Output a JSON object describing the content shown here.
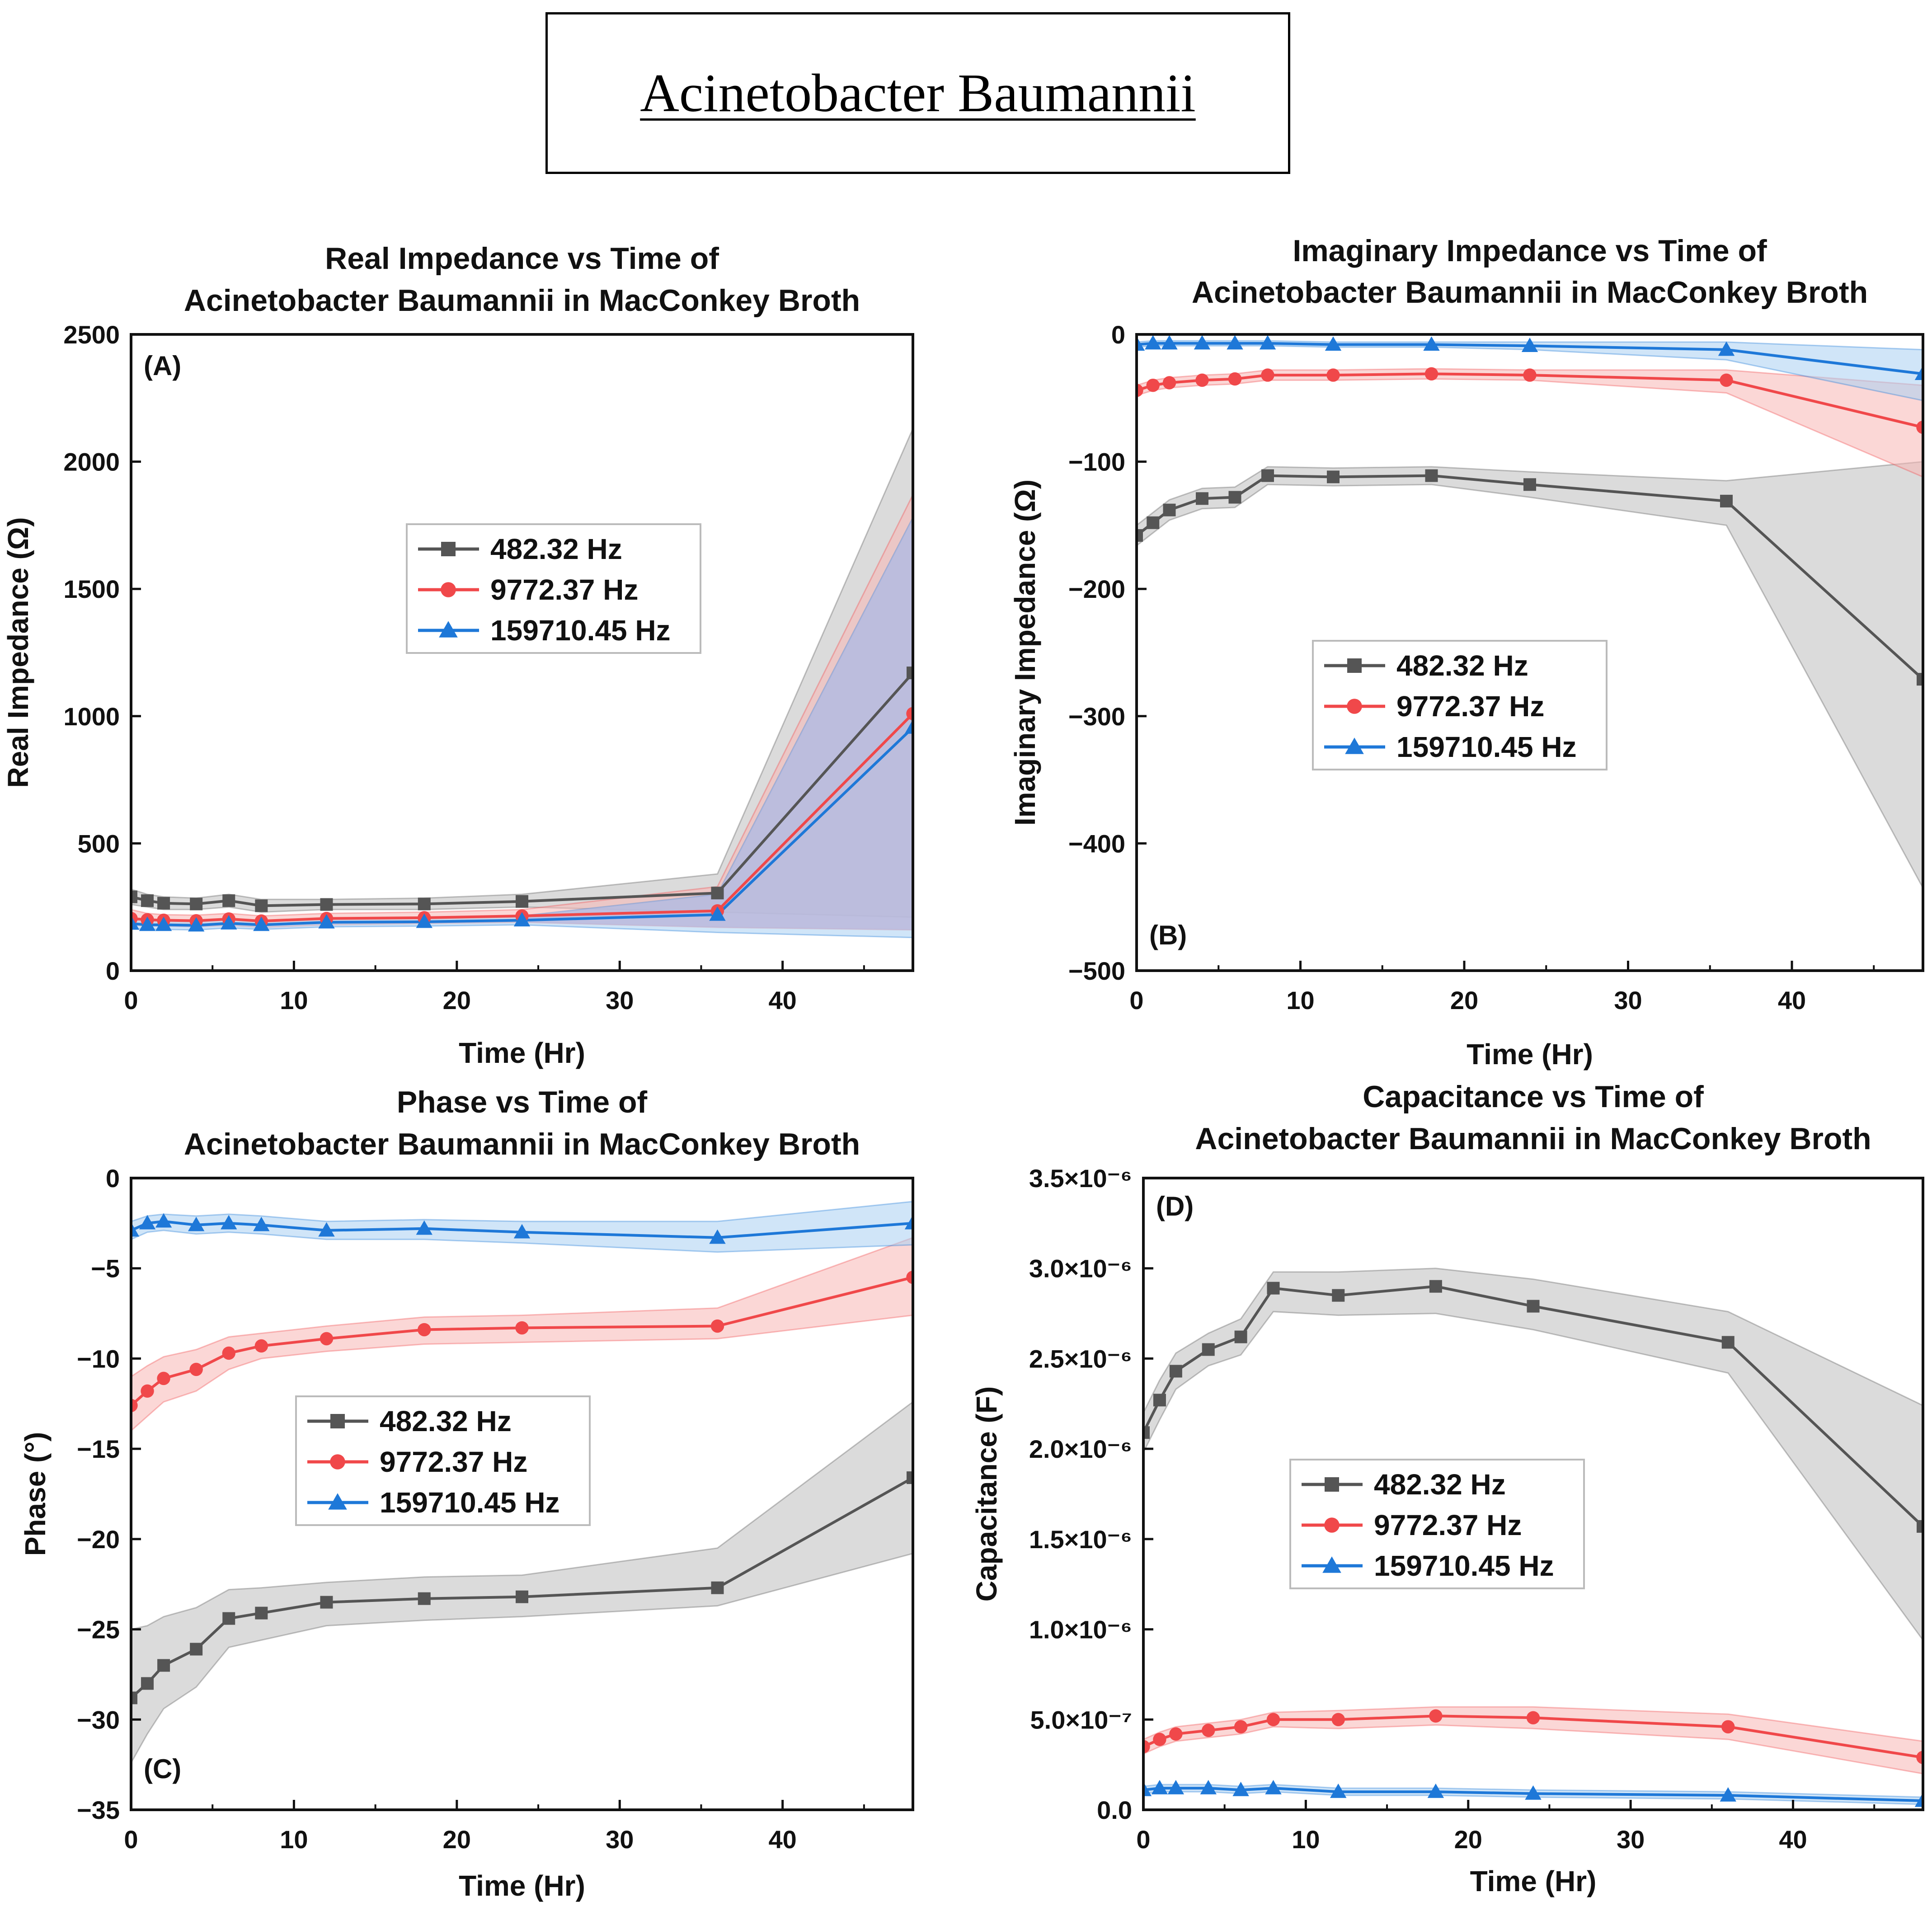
{
  "page_title": "Acinetobacter Baumannii",
  "colors": {
    "s482": "#555555",
    "s482_band": "#cfcfcf",
    "s9772": "#f0484a",
    "s9772_band": "#f7b7b5",
    "s159710": "#1e78d8",
    "s159710_band": "#a9cff3",
    "purple_overlap": "#b4b3dc"
  },
  "chart_data": [
    {
      "id": "A",
      "type": "line",
      "panel_label": "(A)",
      "title": [
        "Real Impedance vs Time of",
        "Acinetobacter Baumannii in MacConkey Broth"
      ],
      "xlabel": "Time (Hr)",
      "ylabel": "Real Impedance (Ω)",
      "xlim": [
        0,
        48
      ],
      "ylim": [
        0,
        2500
      ],
      "xticks": [
        0,
        10,
        20,
        30,
        40
      ],
      "yticks": [
        0,
        500,
        1000,
        1500,
        2000,
        2500
      ],
      "ytick_labels": [
        "0",
        "500",
        "1000",
        "1500",
        "2000",
        "2500"
      ],
      "legend": {
        "position": "center",
        "entries": [
          "482.32 Hz",
          "9772.37 Hz",
          "159710.45 Hz"
        ]
      },
      "x": [
        0,
        1,
        2,
        4,
        6,
        8,
        12,
        18,
        24,
        36,
        48
      ],
      "series": [
        {
          "name": "482.32 Hz",
          "marker": "square",
          "values": [
            290,
            275,
            265,
            262,
            275,
            255,
            260,
            262,
            272,
            305,
            1170
          ],
          "upper": [
            320,
            300,
            290,
            285,
            300,
            280,
            280,
            285,
            300,
            380,
            2130
          ],
          "lower": [
            260,
            250,
            240,
            240,
            250,
            230,
            240,
            240,
            250,
            230,
            210
          ]
        },
        {
          "name": "9772.37 Hz",
          "marker": "circle",
          "values": [
            205,
            200,
            198,
            196,
            203,
            195,
            205,
            208,
            215,
            235,
            1010
          ],
          "upper": [
            240,
            225,
            220,
            218,
            225,
            215,
            225,
            230,
            240,
            330,
            1870
          ],
          "lower": [
            180,
            175,
            175,
            172,
            178,
            170,
            180,
            185,
            190,
            170,
            160
          ]
        },
        {
          "name": "159710.45 Hz",
          "marker": "triangle",
          "values": [
            185,
            180,
            180,
            178,
            186,
            180,
            190,
            192,
            198,
            220,
            955
          ],
          "upper": [
            205,
            198,
            198,
            195,
            203,
            197,
            205,
            208,
            215,
            300,
            1780
          ],
          "lower": [
            165,
            162,
            162,
            160,
            168,
            162,
            172,
            175,
            180,
            150,
            130
          ]
        }
      ]
    },
    {
      "id": "B",
      "type": "line",
      "panel_label": "(B)",
      "title": [
        "Imaginary Impedance vs Time of",
        "Acinetobacter Baumannii in MacConkey Broth"
      ],
      "xlabel": "Time (Hr)",
      "ylabel": "Imaginary Impedance (Ω)",
      "xlim": [
        0,
        48
      ],
      "ylim": [
        -500,
        0
      ],
      "xticks": [
        0,
        10,
        20,
        30,
        40
      ],
      "yticks": [
        -500,
        -400,
        -300,
        -200,
        -100,
        0
      ],
      "ytick_labels": [
        "−500",
        "−400",
        "−300",
        "−200",
        "−100",
        "0"
      ],
      "legend": {
        "position": "center-left",
        "entries": [
          "482.32 Hz",
          "9772.37 Hz",
          "159710.45 Hz"
        ]
      },
      "x": [
        0,
        1,
        2,
        4,
        6,
        8,
        12,
        18,
        24,
        36,
        48
      ],
      "series": [
        {
          "name": "482.32 Hz",
          "marker": "square",
          "values": [
            -158,
            -148,
            -138,
            -129,
            -128,
            -111,
            -112,
            -111,
            -118,
            -131,
            -271
          ],
          "upper": [
            -150,
            -140,
            -130,
            -121,
            -120,
            -104,
            -105,
            -104,
            -108,
            -115,
            -100
          ],
          "lower": [
            -166,
            -156,
            -146,
            -137,
            -136,
            -118,
            -119,
            -118,
            -128,
            -150,
            -435
          ]
        },
        {
          "name": "9772.37 Hz",
          "marker": "circle",
          "values": [
            -44,
            -40,
            -38,
            -36,
            -35,
            -32,
            -32,
            -31,
            -32,
            -36,
            -73
          ],
          "upper": [
            -40,
            -36,
            -34,
            -32,
            -31,
            -28,
            -28,
            -27,
            -28,
            -28,
            -40
          ],
          "lower": [
            -48,
            -44,
            -42,
            -40,
            -39,
            -36,
            -36,
            -35,
            -36,
            -46,
            -112
          ]
        },
        {
          "name": "159710.45 Hz",
          "marker": "triangle",
          "values": [
            -8,
            -7,
            -7,
            -7,
            -7,
            -7,
            -8,
            -8,
            -9,
            -12,
            -31
          ],
          "upper": [
            -6,
            -5,
            -5,
            -5,
            -5,
            -5,
            -6,
            -6,
            -6,
            -6,
            -12
          ],
          "lower": [
            -10,
            -9,
            -9,
            -9,
            -9,
            -9,
            -10,
            -10,
            -12,
            -20,
            -52
          ]
        }
      ]
    },
    {
      "id": "C",
      "type": "line",
      "panel_label": "(C)",
      "title": [
        "Phase vs Time of",
        "Acinetobacter Baumannii in MacConkey Broth"
      ],
      "xlabel": "Time (Hr)",
      "ylabel": "Phase (°)",
      "xlim": [
        0,
        48
      ],
      "ylim": [
        -35,
        0
      ],
      "xticks": [
        0,
        10,
        20,
        30,
        40
      ],
      "yticks": [
        -35,
        -30,
        -25,
        -20,
        -15,
        -10,
        -5,
        0
      ],
      "ytick_labels": [
        "−35",
        "−30",
        "−25",
        "−20",
        "−15",
        "−10",
        "−5",
        "0"
      ],
      "legend": {
        "position": "center-left",
        "entries": [
          "482.32 Hz",
          "9772.37 Hz",
          "159710.45 Hz"
        ]
      },
      "x": [
        0,
        1,
        2,
        4,
        6,
        8,
        12,
        18,
        24,
        36,
        48
      ],
      "series": [
        {
          "name": "482.32 Hz",
          "marker": "square",
          "values": [
            -28.8,
            -28.0,
            -27.0,
            -26.1,
            -24.4,
            -24.1,
            -23.5,
            -23.3,
            -23.2,
            -22.7,
            -16.6
          ],
          "upper": [
            -25.0,
            -24.8,
            -24.3,
            -23.8,
            -22.8,
            -22.7,
            -22.4,
            -22.1,
            -22.0,
            -20.5,
            -12.4
          ],
          "lower": [
            -32.4,
            -30.8,
            -29.4,
            -28.2,
            -26.0,
            -25.6,
            -24.8,
            -24.5,
            -24.3,
            -23.7,
            -20.8
          ]
        },
        {
          "name": "9772.37 Hz",
          "marker": "circle",
          "values": [
            -12.6,
            -11.8,
            -11.1,
            -10.6,
            -9.7,
            -9.3,
            -8.9,
            -8.4,
            -8.3,
            -8.2,
            -5.5
          ],
          "upper": [
            -11.0,
            -10.4,
            -9.9,
            -9.5,
            -8.8,
            -8.6,
            -8.2,
            -7.7,
            -7.6,
            -7.2,
            -3.3
          ],
          "lower": [
            -14.0,
            -13.2,
            -12.4,
            -11.8,
            -10.6,
            -10.0,
            -9.6,
            -9.2,
            -9.1,
            -8.9,
            -7.6
          ]
        },
        {
          "name": "159710.45 Hz",
          "marker": "triangle",
          "values": [
            -2.9,
            -2.5,
            -2.4,
            -2.6,
            -2.5,
            -2.6,
            -2.9,
            -2.8,
            -3.0,
            -3.3,
            -2.5
          ],
          "upper": [
            -2.4,
            -2.1,
            -2.0,
            -2.1,
            -2.0,
            -2.1,
            -2.4,
            -2.3,
            -2.4,
            -2.4,
            -1.3
          ],
          "lower": [
            -3.4,
            -3.0,
            -2.9,
            -3.1,
            -3.0,
            -3.1,
            -3.4,
            -3.4,
            -3.6,
            -4.1,
            -3.7
          ]
        }
      ]
    },
    {
      "id": "D",
      "type": "line",
      "panel_label": "(D)",
      "title": [
        "Capacitance vs Time of",
        "Acinetobacter Baumannii in MacConkey Broth"
      ],
      "xlabel": "Time (Hr)",
      "ylabel": "Capacitance (F)",
      "xlim": [
        0,
        48
      ],
      "ylim": [
        0,
        3.5e-06
      ],
      "xticks": [
        0,
        10,
        20,
        30,
        40
      ],
      "yticks": [
        0,
        5e-07,
        1e-06,
        1.5e-06,
        2e-06,
        2.5e-06,
        3e-06,
        3.5e-06
      ],
      "ytick_labels": [
        "0.0",
        "5.0×10⁻⁷",
        "1.0×10⁻⁶",
        "1.5×10⁻⁶",
        "2.0×10⁻⁶",
        "2.5×10⁻⁶",
        "3.0×10⁻⁶",
        "3.5×10⁻⁶"
      ],
      "legend": {
        "position": "center-left",
        "entries": [
          "482.32 Hz",
          "9772.37 Hz",
          "159710.45 Hz"
        ]
      },
      "x": [
        0,
        1,
        2,
        4,
        6,
        8,
        12,
        18,
        24,
        36,
        48
      ],
      "series": [
        {
          "name": "482.32 Hz",
          "marker": "square",
          "values": [
            2.09e-06,
            2.27e-06,
            2.43e-06,
            2.55e-06,
            2.62e-06,
            2.89e-06,
            2.85e-06,
            2.9e-06,
            2.79e-06,
            2.59e-06,
            1.57e-06
          ],
          "upper": [
            2.2e-06,
            2.38e-06,
            2.53e-06,
            2.64e-06,
            2.72e-06,
            2.98e-06,
            2.98e-06,
            3e-06,
            2.94e-06,
            2.76e-06,
            2.24e-06
          ],
          "lower": [
            1.98e-06,
            2.16e-06,
            2.33e-06,
            2.46e-06,
            2.52e-06,
            2.76e-06,
            2.74e-06,
            2.75e-06,
            2.66e-06,
            2.42e-06,
            9.4e-07
          ]
        },
        {
          "name": "9772.37 Hz",
          "marker": "circle",
          "values": [
            3.5e-07,
            3.9e-07,
            4.2e-07,
            4.4e-07,
            4.6e-07,
            5e-07,
            5e-07,
            5.2e-07,
            5.1e-07,
            4.6e-07,
            2.9e-07
          ],
          "upper": [
            3.9e-07,
            4.3e-07,
            4.6e-07,
            4.8e-07,
            5e-07,
            5.4e-07,
            5.5e-07,
            5.7e-07,
            5.7e-07,
            5.3e-07,
            3.8e-07
          ],
          "lower": [
            3.1e-07,
            3.5e-07,
            3.8e-07,
            4e-07,
            4.2e-07,
            4.6e-07,
            4.5e-07,
            4.7e-07,
            4.5e-07,
            3.9e-07,
            2e-07
          ]
        },
        {
          "name": "159710.45 Hz",
          "marker": "triangle",
          "values": [
            1.1e-07,
            1.2e-07,
            1.2e-07,
            1.2e-07,
            1.1e-07,
            1.2e-07,
            1e-07,
            1e-07,
            9e-08,
            8e-08,
            5e-08
          ],
          "upper": [
            1.3e-07,
            1.4e-07,
            1.4e-07,
            1.4e-07,
            1.3e-07,
            1.4e-07,
            1.2e-07,
            1.2e-07,
            1.1e-07,
            1e-07,
            7e-08
          ],
          "lower": [
            9e-08,
            1e-07,
            1e-07,
            1e-07,
            9e-08,
            1e-07,
            8e-08,
            8e-08,
            7e-08,
            6e-08,
            3e-08
          ]
        }
      ]
    }
  ]
}
